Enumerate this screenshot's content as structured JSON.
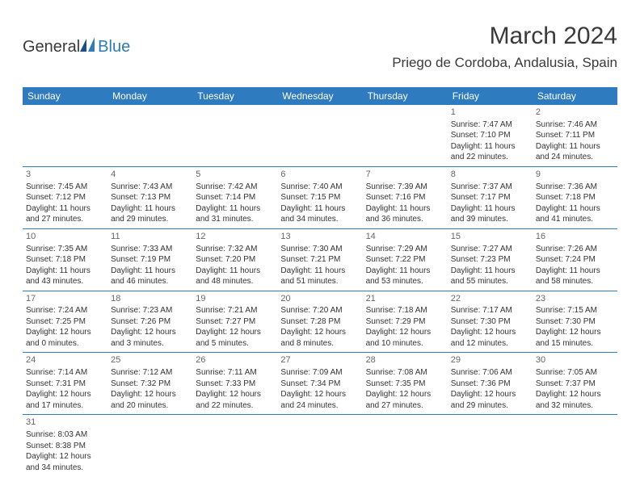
{
  "logo": {
    "general": "General",
    "blue": "Blue"
  },
  "header": {
    "title": "March 2024",
    "location": "Priego de Cordoba, Andalusia, Spain"
  },
  "colors": {
    "accent": "#2f7bbf",
    "logoBlue": "#2c7bb6",
    "text": "#333333",
    "bg": "#ffffff"
  },
  "weekdays": [
    "Sunday",
    "Monday",
    "Tuesday",
    "Wednesday",
    "Thursday",
    "Friday",
    "Saturday"
  ],
  "weeks": [
    [
      null,
      null,
      null,
      null,
      null,
      {
        "n": "1",
        "sr": "Sunrise: 7:47 AM",
        "ss": "Sunset: 7:10 PM",
        "dl1": "Daylight: 11 hours",
        "dl2": "and 22 minutes."
      },
      {
        "n": "2",
        "sr": "Sunrise: 7:46 AM",
        "ss": "Sunset: 7:11 PM",
        "dl1": "Daylight: 11 hours",
        "dl2": "and 24 minutes."
      }
    ],
    [
      {
        "n": "3",
        "sr": "Sunrise: 7:45 AM",
        "ss": "Sunset: 7:12 PM",
        "dl1": "Daylight: 11 hours",
        "dl2": "and 27 minutes."
      },
      {
        "n": "4",
        "sr": "Sunrise: 7:43 AM",
        "ss": "Sunset: 7:13 PM",
        "dl1": "Daylight: 11 hours",
        "dl2": "and 29 minutes."
      },
      {
        "n": "5",
        "sr": "Sunrise: 7:42 AM",
        "ss": "Sunset: 7:14 PM",
        "dl1": "Daylight: 11 hours",
        "dl2": "and 31 minutes."
      },
      {
        "n": "6",
        "sr": "Sunrise: 7:40 AM",
        "ss": "Sunset: 7:15 PM",
        "dl1": "Daylight: 11 hours",
        "dl2": "and 34 minutes."
      },
      {
        "n": "7",
        "sr": "Sunrise: 7:39 AM",
        "ss": "Sunset: 7:16 PM",
        "dl1": "Daylight: 11 hours",
        "dl2": "and 36 minutes."
      },
      {
        "n": "8",
        "sr": "Sunrise: 7:37 AM",
        "ss": "Sunset: 7:17 PM",
        "dl1": "Daylight: 11 hours",
        "dl2": "and 39 minutes."
      },
      {
        "n": "9",
        "sr": "Sunrise: 7:36 AM",
        "ss": "Sunset: 7:18 PM",
        "dl1": "Daylight: 11 hours",
        "dl2": "and 41 minutes."
      }
    ],
    [
      {
        "n": "10",
        "sr": "Sunrise: 7:35 AM",
        "ss": "Sunset: 7:18 PM",
        "dl1": "Daylight: 11 hours",
        "dl2": "and 43 minutes."
      },
      {
        "n": "11",
        "sr": "Sunrise: 7:33 AM",
        "ss": "Sunset: 7:19 PM",
        "dl1": "Daylight: 11 hours",
        "dl2": "and 46 minutes."
      },
      {
        "n": "12",
        "sr": "Sunrise: 7:32 AM",
        "ss": "Sunset: 7:20 PM",
        "dl1": "Daylight: 11 hours",
        "dl2": "and 48 minutes."
      },
      {
        "n": "13",
        "sr": "Sunrise: 7:30 AM",
        "ss": "Sunset: 7:21 PM",
        "dl1": "Daylight: 11 hours",
        "dl2": "and 51 minutes."
      },
      {
        "n": "14",
        "sr": "Sunrise: 7:29 AM",
        "ss": "Sunset: 7:22 PM",
        "dl1": "Daylight: 11 hours",
        "dl2": "and 53 minutes."
      },
      {
        "n": "15",
        "sr": "Sunrise: 7:27 AM",
        "ss": "Sunset: 7:23 PM",
        "dl1": "Daylight: 11 hours",
        "dl2": "and 55 minutes."
      },
      {
        "n": "16",
        "sr": "Sunrise: 7:26 AM",
        "ss": "Sunset: 7:24 PM",
        "dl1": "Daylight: 11 hours",
        "dl2": "and 58 minutes."
      }
    ],
    [
      {
        "n": "17",
        "sr": "Sunrise: 7:24 AM",
        "ss": "Sunset: 7:25 PM",
        "dl1": "Daylight: 12 hours",
        "dl2": "and 0 minutes."
      },
      {
        "n": "18",
        "sr": "Sunrise: 7:23 AM",
        "ss": "Sunset: 7:26 PM",
        "dl1": "Daylight: 12 hours",
        "dl2": "and 3 minutes."
      },
      {
        "n": "19",
        "sr": "Sunrise: 7:21 AM",
        "ss": "Sunset: 7:27 PM",
        "dl1": "Daylight: 12 hours",
        "dl2": "and 5 minutes."
      },
      {
        "n": "20",
        "sr": "Sunrise: 7:20 AM",
        "ss": "Sunset: 7:28 PM",
        "dl1": "Daylight: 12 hours",
        "dl2": "and 8 minutes."
      },
      {
        "n": "21",
        "sr": "Sunrise: 7:18 AM",
        "ss": "Sunset: 7:29 PM",
        "dl1": "Daylight: 12 hours",
        "dl2": "and 10 minutes."
      },
      {
        "n": "22",
        "sr": "Sunrise: 7:17 AM",
        "ss": "Sunset: 7:30 PM",
        "dl1": "Daylight: 12 hours",
        "dl2": "and 12 minutes."
      },
      {
        "n": "23",
        "sr": "Sunrise: 7:15 AM",
        "ss": "Sunset: 7:30 PM",
        "dl1": "Daylight: 12 hours",
        "dl2": "and 15 minutes."
      }
    ],
    [
      {
        "n": "24",
        "sr": "Sunrise: 7:14 AM",
        "ss": "Sunset: 7:31 PM",
        "dl1": "Daylight: 12 hours",
        "dl2": "and 17 minutes."
      },
      {
        "n": "25",
        "sr": "Sunrise: 7:12 AM",
        "ss": "Sunset: 7:32 PM",
        "dl1": "Daylight: 12 hours",
        "dl2": "and 20 minutes."
      },
      {
        "n": "26",
        "sr": "Sunrise: 7:11 AM",
        "ss": "Sunset: 7:33 PM",
        "dl1": "Daylight: 12 hours",
        "dl2": "and 22 minutes."
      },
      {
        "n": "27",
        "sr": "Sunrise: 7:09 AM",
        "ss": "Sunset: 7:34 PM",
        "dl1": "Daylight: 12 hours",
        "dl2": "and 24 minutes."
      },
      {
        "n": "28",
        "sr": "Sunrise: 7:08 AM",
        "ss": "Sunset: 7:35 PM",
        "dl1": "Daylight: 12 hours",
        "dl2": "and 27 minutes."
      },
      {
        "n": "29",
        "sr": "Sunrise: 7:06 AM",
        "ss": "Sunset: 7:36 PM",
        "dl1": "Daylight: 12 hours",
        "dl2": "and 29 minutes."
      },
      {
        "n": "30",
        "sr": "Sunrise: 7:05 AM",
        "ss": "Sunset: 7:37 PM",
        "dl1": "Daylight: 12 hours",
        "dl2": "and 32 minutes."
      }
    ],
    [
      {
        "n": "31",
        "sr": "Sunrise: 8:03 AM",
        "ss": "Sunset: 8:38 PM",
        "dl1": "Daylight: 12 hours",
        "dl2": "and 34 minutes."
      },
      null,
      null,
      null,
      null,
      null,
      null
    ]
  ]
}
